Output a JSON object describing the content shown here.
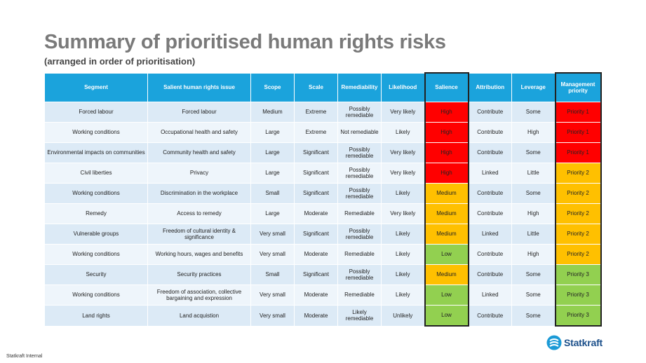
{
  "title": "Summary of prioritised human rights risks",
  "subtitle": "(arranged in order of prioritisation)",
  "columns": [
    "Segment",
    "Salient human rights issue",
    "Scope",
    "Scale",
    "Remediability",
    "Likelihood",
    "Salience",
    "Attribution",
    "Leverage",
    "Management priority"
  ],
  "rows": [
    {
      "segment": "Forced labour",
      "issue": "Forced labour",
      "scope": "Medium",
      "scale": "Extreme",
      "remediability": "Possibly remediable",
      "likelihood": "Very likely",
      "salience": "High",
      "attribution": "Contribute",
      "leverage": "Some",
      "priority": "Priority 1"
    },
    {
      "segment": "Working conditions",
      "issue": "Occupational health and safety",
      "scope": "Large",
      "scale": "Extreme",
      "remediability": "Not remediable",
      "likelihood": "Likely",
      "salience": "High",
      "attribution": "Contribute",
      "leverage": "High",
      "priority": "Priority 1"
    },
    {
      "segment": "Environmental impacts on communities",
      "issue": "Community health and safety",
      "scope": "Large",
      "scale": "Significant",
      "remediability": "Possibly remediable",
      "likelihood": "Very likely",
      "salience": "High",
      "attribution": "Contribute",
      "leverage": "Some",
      "priority": "Priority 1"
    },
    {
      "segment": "Civil liberties",
      "issue": "Privacy",
      "scope": "Large",
      "scale": "Significant",
      "remediability": "Possibly remediable",
      "likelihood": "Very likely",
      "salience": "High",
      "attribution": "Linked",
      "leverage": "Little",
      "priority": "Priority 2"
    },
    {
      "segment": "Working conditions",
      "issue": "Discrimination in the workplace",
      "scope": "Small",
      "scale": "Significant",
      "remediability": "Possibly remediable",
      "likelihood": "Likely",
      "salience": "Medium",
      "attribution": "Contribute",
      "leverage": "Some",
      "priority": "Priority 2"
    },
    {
      "segment": "Remedy",
      "issue": "Access to remedy",
      "scope": "Large",
      "scale": "Moderate",
      "remediability": "Remediable",
      "likelihood": "Very likely",
      "salience": "Medium",
      "attribution": "Contribute",
      "leverage": "High",
      "priority": "Priority 2"
    },
    {
      "segment": "Vulnerable groups",
      "issue": "Freedom of cultural identity & significance",
      "scope": "Very small",
      "scale": "Significant",
      "remediability": "Possibly remediable",
      "likelihood": "Likely",
      "salience": "Medium",
      "attribution": "Linked",
      "leverage": "Little",
      "priority": "Priority 2"
    },
    {
      "segment": "Working conditions",
      "issue": "Working hours, wages and benefits",
      "scope": "Very small",
      "scale": "Moderate",
      "remediability": "Remediable",
      "likelihood": "Likely",
      "salience": "Low",
      "attribution": "Contribute",
      "leverage": "High",
      "priority": "Priority 2"
    },
    {
      "segment": "Security",
      "issue": "Security practices",
      "scope": "Small",
      "scale": "Significant",
      "remediability": "Possibly remediable",
      "likelihood": "Likely",
      "salience": "Medium",
      "attribution": "Contribute",
      "leverage": "Some",
      "priority": "Priority 3"
    },
    {
      "segment": "Working conditions",
      "issue": "Freedom of association, collective bargaining and expression",
      "scope": "Very small",
      "scale": "Moderate",
      "remediability": "Remediable",
      "likelihood": "Likely",
      "salience": "Low",
      "attribution": "Linked",
      "leverage": "Some",
      "priority": "Priority 3"
    },
    {
      "segment": "Land rights",
      "issue": "Land acquistion",
      "scope": "Very small",
      "scale": "Moderate",
      "remediability": "Likely remediable",
      "likelihood": "Unlikely",
      "salience": "Low",
      "attribution": "Contribute",
      "leverage": "Some",
      "priority": "Priority 3"
    }
  ],
  "colors": {
    "header": "#1ba3dc",
    "high": "#ff0000",
    "medium": "#ffc000",
    "low": "#92d050",
    "title": "#7a7a7a"
  },
  "footer": "Statkraft Internal",
  "logo": {
    "icon": "statkraft-logo-icon",
    "text": "Statkraft"
  }
}
